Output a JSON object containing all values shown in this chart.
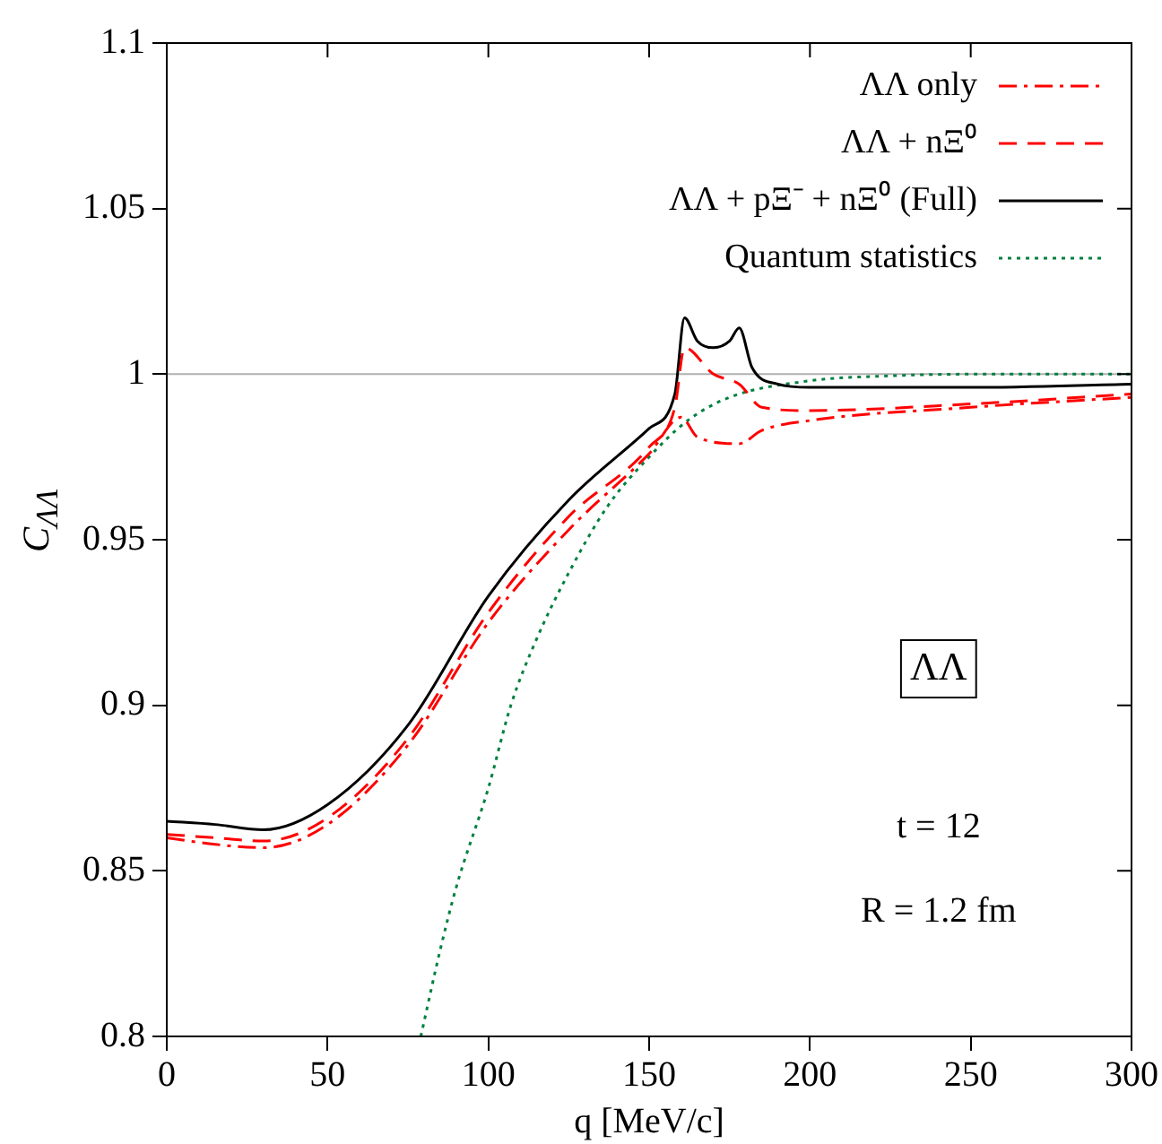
{
  "chart_data": {
    "type": "line",
    "xlabel": "q [MeV/c]",
    "ylabel": "C$_{ΛΛ}$",
    "xlim": [
      0,
      300
    ],
    "xticks": [
      0,
      50,
      100,
      150,
      200,
      250,
      300
    ],
    "ylim": [
      0.8,
      1.1
    ],
    "yticks": [
      0.8,
      0.85,
      0.9,
      0.95,
      1,
      1.05,
      1.1
    ],
    "grid": false,
    "legend": "top right",
    "marker": "none",
    "ref_lines": [
      {
        "axis": "y",
        "value": 1,
        "color": "#b0b0b0"
      }
    ],
    "annotations": [
      "ΛΛ",
      "t = 12",
      "R = 1.2 fm"
    ],
    "series": [
      {
        "name": "ΛΛ only",
        "color": "#ff0000",
        "line_style": "dashdot",
        "x": [
          0,
          15,
          30,
          50,
          75,
          100,
          125,
          150,
          160,
          165,
          178,
          185,
          200,
          250,
          300
        ],
        "values": [
          0.86,
          0.858,
          0.857,
          0.864,
          0.888,
          0.925,
          0.953,
          0.976,
          0.987,
          0.981,
          0.979,
          0.983,
          0.986,
          0.99,
          0.993
        ]
      },
      {
        "name": "ΛΛ + nΞ⁰",
        "color": "#ff0000",
        "line_style": "dashed",
        "x": [
          0,
          15,
          30,
          50,
          75,
          100,
          125,
          150,
          158,
          161,
          170,
          178,
          185,
          200,
          250,
          300
        ],
        "values": [
          0.861,
          0.86,
          0.859,
          0.866,
          0.89,
          0.928,
          0.957,
          0.978,
          0.99,
          1.008,
          1.0,
          0.997,
          0.99,
          0.989,
          0.991,
          0.994
        ]
      },
      {
        "name": "ΛΛ + pΞ⁻ + nΞ⁰ (Full)",
        "color": "#000000",
        "line_style": "solid",
        "x": [
          0,
          15,
          30,
          50,
          75,
          100,
          125,
          150,
          158,
          161,
          165,
          170,
          175,
          178,
          182,
          190,
          200,
          250,
          300
        ],
        "values": [
          0.865,
          0.864,
          0.8624,
          0.87,
          0.894,
          0.933,
          0.962,
          0.9836,
          0.994,
          1.017,
          1.01,
          1.008,
          1.01,
          1.014,
          1.002,
          0.997,
          0.996,
          0.996,
          0.997
        ]
      },
      {
        "name": "Quantum statistics",
        "color": "#008040",
        "line_style": "dotted",
        "x": [
          79,
          85,
          90,
          100,
          107,
          115,
          125,
          137,
          150,
          162,
          175,
          200,
          225,
          250,
          300
        ],
        "values": [
          0.8,
          0.826,
          0.845,
          0.875,
          0.9,
          0.92,
          0.94,
          0.96,
          0.975,
          0.986,
          0.993,
          0.998,
          0.9995,
          1.0,
          1.0
        ]
      }
    ]
  }
}
